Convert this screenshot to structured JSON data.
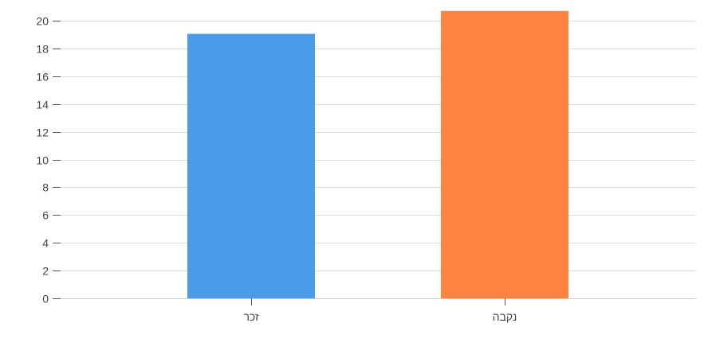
{
  "chart_data": {
    "type": "bar",
    "categories": [
      "זכר",
      "נקבה"
    ],
    "values": [
      19.05,
      20.7
    ],
    "colors": [
      "#4a9be9",
      "#ff8440"
    ],
    "ylim": [
      0,
      21
    ],
    "yticks": [
      0,
      2,
      4,
      6,
      8,
      10,
      12,
      14,
      16,
      18,
      20
    ],
    "grid": true,
    "legend": "none",
    "title": "",
    "xlabel": "",
    "ylabel": ""
  }
}
